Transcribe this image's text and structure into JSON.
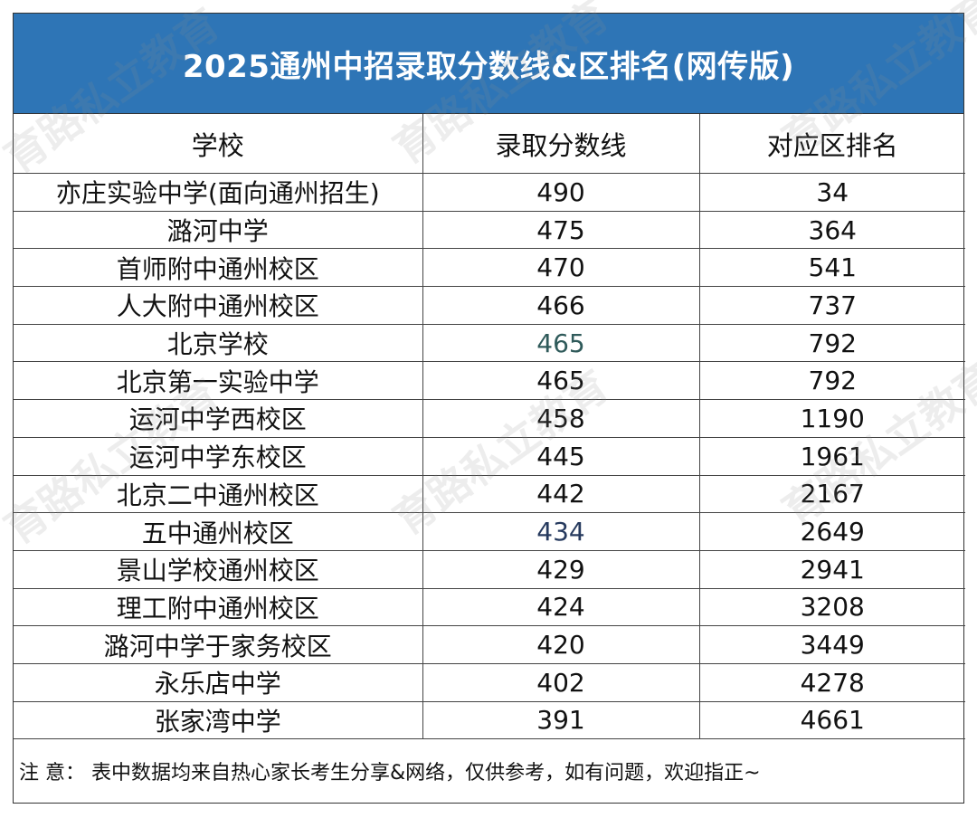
{
  "title": "2025通州中招录取分数线&区排名(网传版)",
  "headers": [
    "学校",
    "录取分数线",
    "对应区排名"
  ],
  "rows": [
    {
      "school": "亦庄实验中学(面向通州招生)",
      "score": "490",
      "rank": "34"
    },
    {
      "school": "潞河中学",
      "score": "475",
      "rank": "364"
    },
    {
      "school": "首师附中通州校区",
      "score": "470",
      "rank": "541"
    },
    {
      "school": "人大附中通州校区",
      "score": "466",
      "rank": "737"
    },
    {
      "school": "北京学校",
      "score": "465",
      "rank": "792"
    },
    {
      "school": "北京第一实验中学",
      "score": "465",
      "rank": "792"
    },
    {
      "school": "运河中学西校区",
      "score": "458",
      "rank": "1190"
    },
    {
      "school": "运河中学东校区",
      "score": "445",
      "rank": "1961"
    },
    {
      "school": "北京二中通州校区",
      "score": "442",
      "rank": "2167"
    },
    {
      "school": "五中通州校区",
      "score": "434",
      "rank": "2649"
    },
    {
      "school": "景山学校通州校区",
      "score": "429",
      "rank": "2941"
    },
    {
      "school": "理工附中通州校区",
      "score": "424",
      "rank": "3208"
    },
    {
      "school": "潞河中学于家务校区",
      "score": "420",
      "rank": "3449"
    },
    {
      "school": "永乐店中学",
      "score": "402",
      "rank": "4278"
    },
    {
      "school": "张家湾中学",
      "score": "391",
      "rank": "4661"
    }
  ],
  "note": "注 意： 表中数据均来自热心家长考生分享&网络，仅供参考，如有问题，欢迎指正~",
  "watermark": "育路私立教育",
  "colors": {
    "title_bg": "#2e75b6",
    "title_text": "#ffffff",
    "border": "#333333",
    "score_teal": "#2f5a5a",
    "score_navy": "#263a5e"
  }
}
